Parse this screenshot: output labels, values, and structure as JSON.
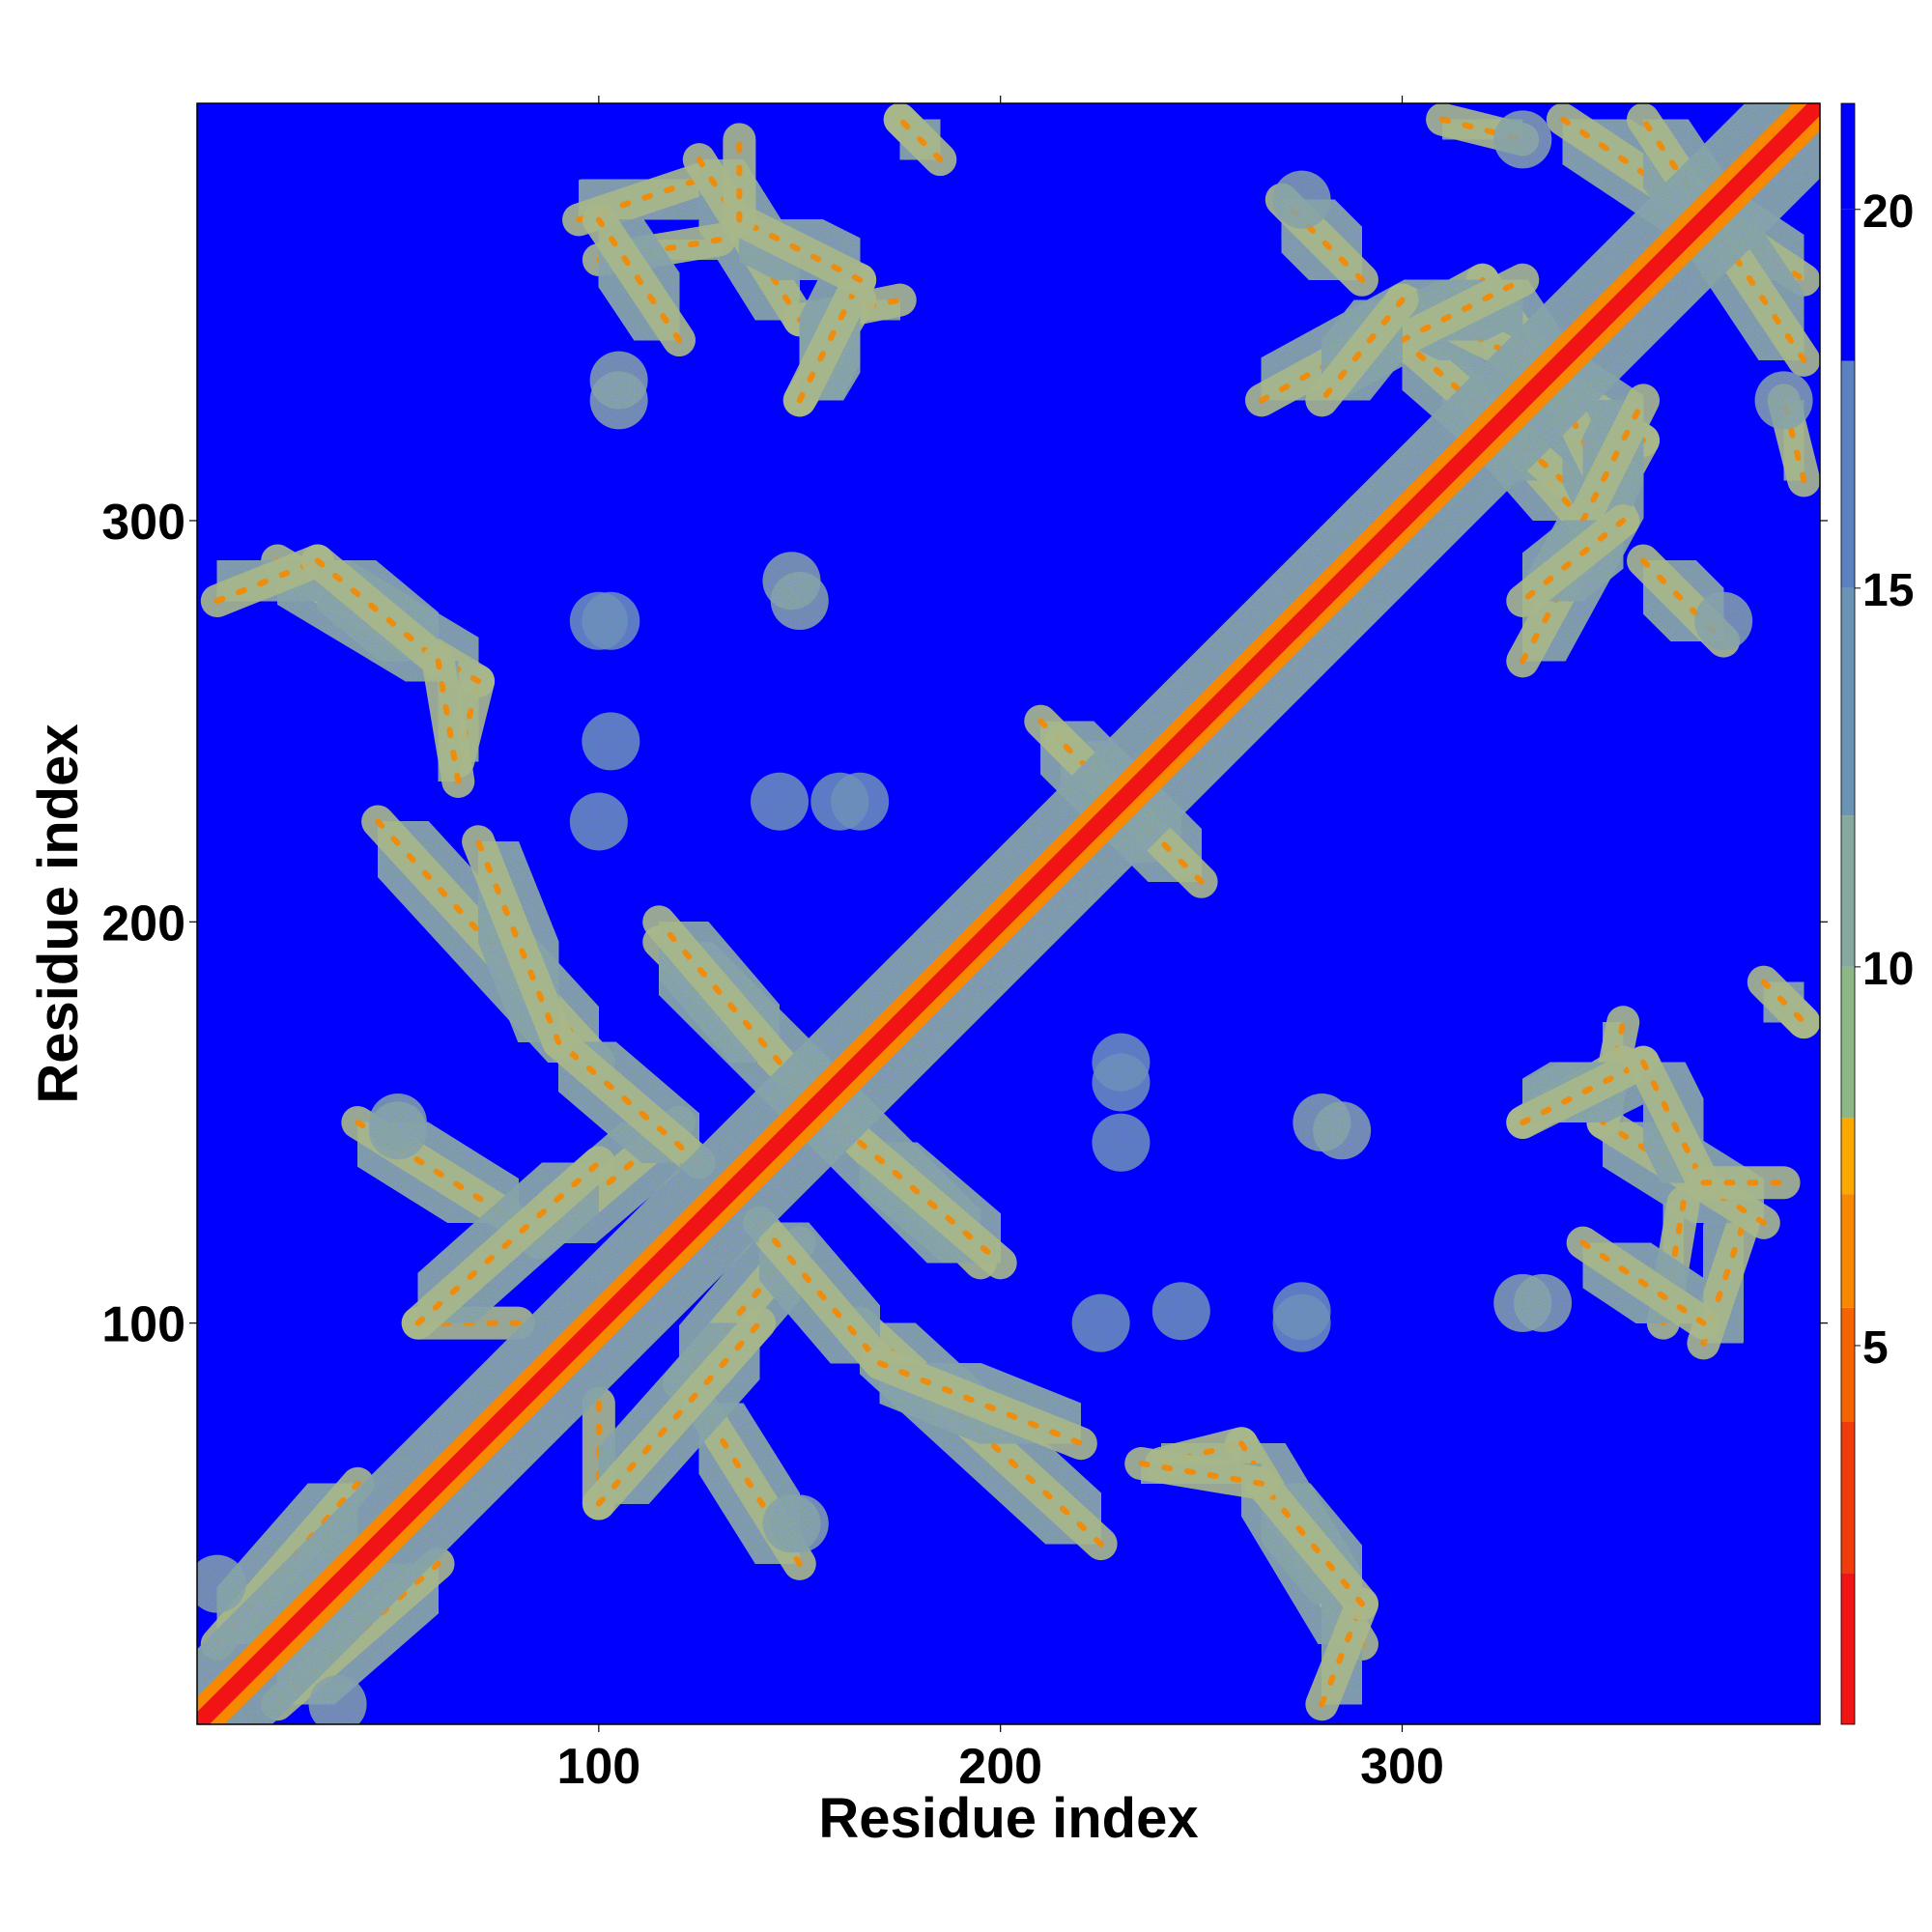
{
  "chart_data": {
    "type": "heatmap",
    "title": "",
    "xlabel": "Residue index",
    "ylabel": "Residue index",
    "xlim": [
      0,
      404
    ],
    "ylim": [
      0,
      404
    ],
    "xticks": [
      100,
      200,
      300
    ],
    "yticks": [
      100,
      200,
      300
    ],
    "xtick_labels": [
      "100",
      "200",
      "300"
    ],
    "ytick_labels": [
      "100",
      "200",
      "300"
    ],
    "grid": false,
    "colorbar": {
      "range": [
        0,
        21.4
      ],
      "ticks": [
        5,
        10,
        15,
        20
      ],
      "tick_labels": [
        "5",
        "10",
        "15",
        "20"
      ],
      "colors": [
        "#f01414",
        "#f03c0a",
        "#f56400",
        "#f78800",
        "#fba800",
        "#8db886",
        "#86a8a0",
        "#6b94b4",
        "#5a82c0",
        "#0000ff"
      ],
      "levels": [
        2,
        4,
        5.5,
        7,
        8,
        10,
        12,
        15,
        18,
        20
      ]
    },
    "background_value": 21,
    "background_color": "#0000ff",
    "diagonal": {
      "value": 2,
      "color": "#f01414",
      "description": "main diagonal, near-neighbour residue distances"
    },
    "contact_bands": [
      {
        "from": [
          5,
          20
        ],
        "to": [
          40,
          60
        ],
        "value": 11
      },
      {
        "from": [
          40,
          150
        ],
        "to": [
          80,
          125
        ],
        "value": 11
      },
      {
        "from": [
          85,
          120
        ],
        "to": [
          120,
          150
        ],
        "value": 11
      },
      {
        "from": [
          80,
          100
        ],
        "to": [
          55,
          100
        ],
        "value": 11
      },
      {
        "from": [
          55,
          100
        ],
        "to": [
          100,
          140
        ],
        "value": 11
      },
      {
        "from": [
          45,
          225
        ],
        "to": [
          100,
          165
        ],
        "value": 11
      },
      {
        "from": [
          115,
          195
        ],
        "to": [
          165,
          145
        ],
        "value": 11
      },
      {
        "from": [
          165,
          145
        ],
        "to": [
          200,
          115
        ],
        "value": 11
      },
      {
        "from": [
          140,
          125
        ],
        "to": [
          170,
          90
        ],
        "value": 11
      },
      {
        "from": [
          170,
          90
        ],
        "to": [
          220,
          70
        ],
        "value": 11
      },
      {
        "from": [
          240,
          65
        ],
        "to": [
          260,
          70
        ],
        "value": 11
      },
      {
        "from": [
          260,
          70
        ],
        "to": [
          290,
          20
        ],
        "value": 11
      },
      {
        "from": [
          5,
          280
        ],
        "to": [
          30,
          290
        ],
        "value": 11
      },
      {
        "from": [
          30,
          290
        ],
        "to": [
          60,
          265
        ],
        "value": 11
      },
      {
        "from": [
          60,
          265
        ],
        "to": [
          65,
          235
        ],
        "value": 11
      },
      {
        "from": [
          95,
          375
        ],
        "to": [
          125,
          385
        ],
        "value": 11
      },
      {
        "from": [
          125,
          390
        ],
        "to": [
          150,
          350
        ],
        "value": 11
      },
      {
        "from": [
          150,
          350
        ],
        "to": [
          175,
          355
        ],
        "value": 11
      },
      {
        "from": [
          150,
          330
        ],
        "to": [
          165,
          355
        ],
        "value": 11
      },
      {
        "from": [
          175,
          400
        ],
        "to": [
          180,
          395
        ],
        "value": 11
      },
      {
        "from": [
          210,
          250
        ],
        "to": [
          245,
          215
        ],
        "value": 11
      },
      {
        "from": [
          265,
          330
        ],
        "to": [
          320,
          360
        ],
        "value": 11
      },
      {
        "from": [
          320,
          360
        ],
        "to": [
          340,
          330
        ],
        "value": 11
      },
      {
        "from": [
          310,
          340
        ],
        "to": [
          345,
          300
        ],
        "value": 11
      },
      {
        "from": [
          340,
          330
        ],
        "to": [
          355,
          300
        ],
        "value": 11
      },
      {
        "from": [
          345,
          300
        ],
        "to": [
          360,
          330
        ],
        "value": 11
      },
      {
        "from": [
          355,
          300
        ],
        "to": [
          330,
          280
        ],
        "value": 11
      },
      {
        "from": [
          360,
          290
        ],
        "to": [
          380,
          270
        ],
        "value": 11
      },
      {
        "from": [
          340,
          400
        ],
        "to": [
          400,
          360
        ],
        "value": 11
      },
      {
        "from": [
          310,
          400
        ],
        "to": [
          330,
          395
        ],
        "value": 11
      },
      {
        "from": [
          330,
          150
        ],
        "to": [
          360,
          165
        ],
        "value": 11
      },
      {
        "from": [
          360,
          165
        ],
        "to": [
          375,
          135
        ],
        "value": 11
      },
      {
        "from": [
          375,
          135
        ],
        "to": [
          395,
          135
        ],
        "value": 11
      },
      {
        "from": [
          390,
          185
        ],
        "to": [
          400,
          175
        ],
        "value": 11
      },
      {
        "from": [
          370,
          130
        ],
        "to": [
          365,
          100
        ],
        "value": 11
      },
      {
        "from": [
          345,
          120
        ],
        "to": [
          375,
          100
        ],
        "value": 11
      }
    ],
    "contact_patches": [
      {
        "x": 50,
        "y": 150,
        "value": 12
      },
      {
        "x": 148,
        "y": 50,
        "value": 12
      },
      {
        "x": 105,
        "y": 330,
        "value": 12
      },
      {
        "x": 148,
        "y": 285,
        "value": 12
      },
      {
        "x": 103,
        "y": 275,
        "value": 13
      },
      {
        "x": 103,
        "y": 245,
        "value": 13
      },
      {
        "x": 145,
        "y": 230,
        "value": 13
      },
      {
        "x": 165,
        "y": 230,
        "value": 13
      },
      {
        "x": 230,
        "y": 160,
        "value": 13
      },
      {
        "x": 225,
        "y": 100,
        "value": 13
      },
      {
        "x": 275,
        "y": 100,
        "value": 13
      },
      {
        "x": 280,
        "y": 150,
        "value": 12
      },
      {
        "x": 335,
        "y": 105,
        "value": 12
      },
      {
        "x": 275,
        "y": 380,
        "value": 12
      },
      {
        "x": 395,
        "y": 330,
        "value": 12
      },
      {
        "x": 5,
        "y": 35,
        "value": 12
      }
    ]
  }
}
